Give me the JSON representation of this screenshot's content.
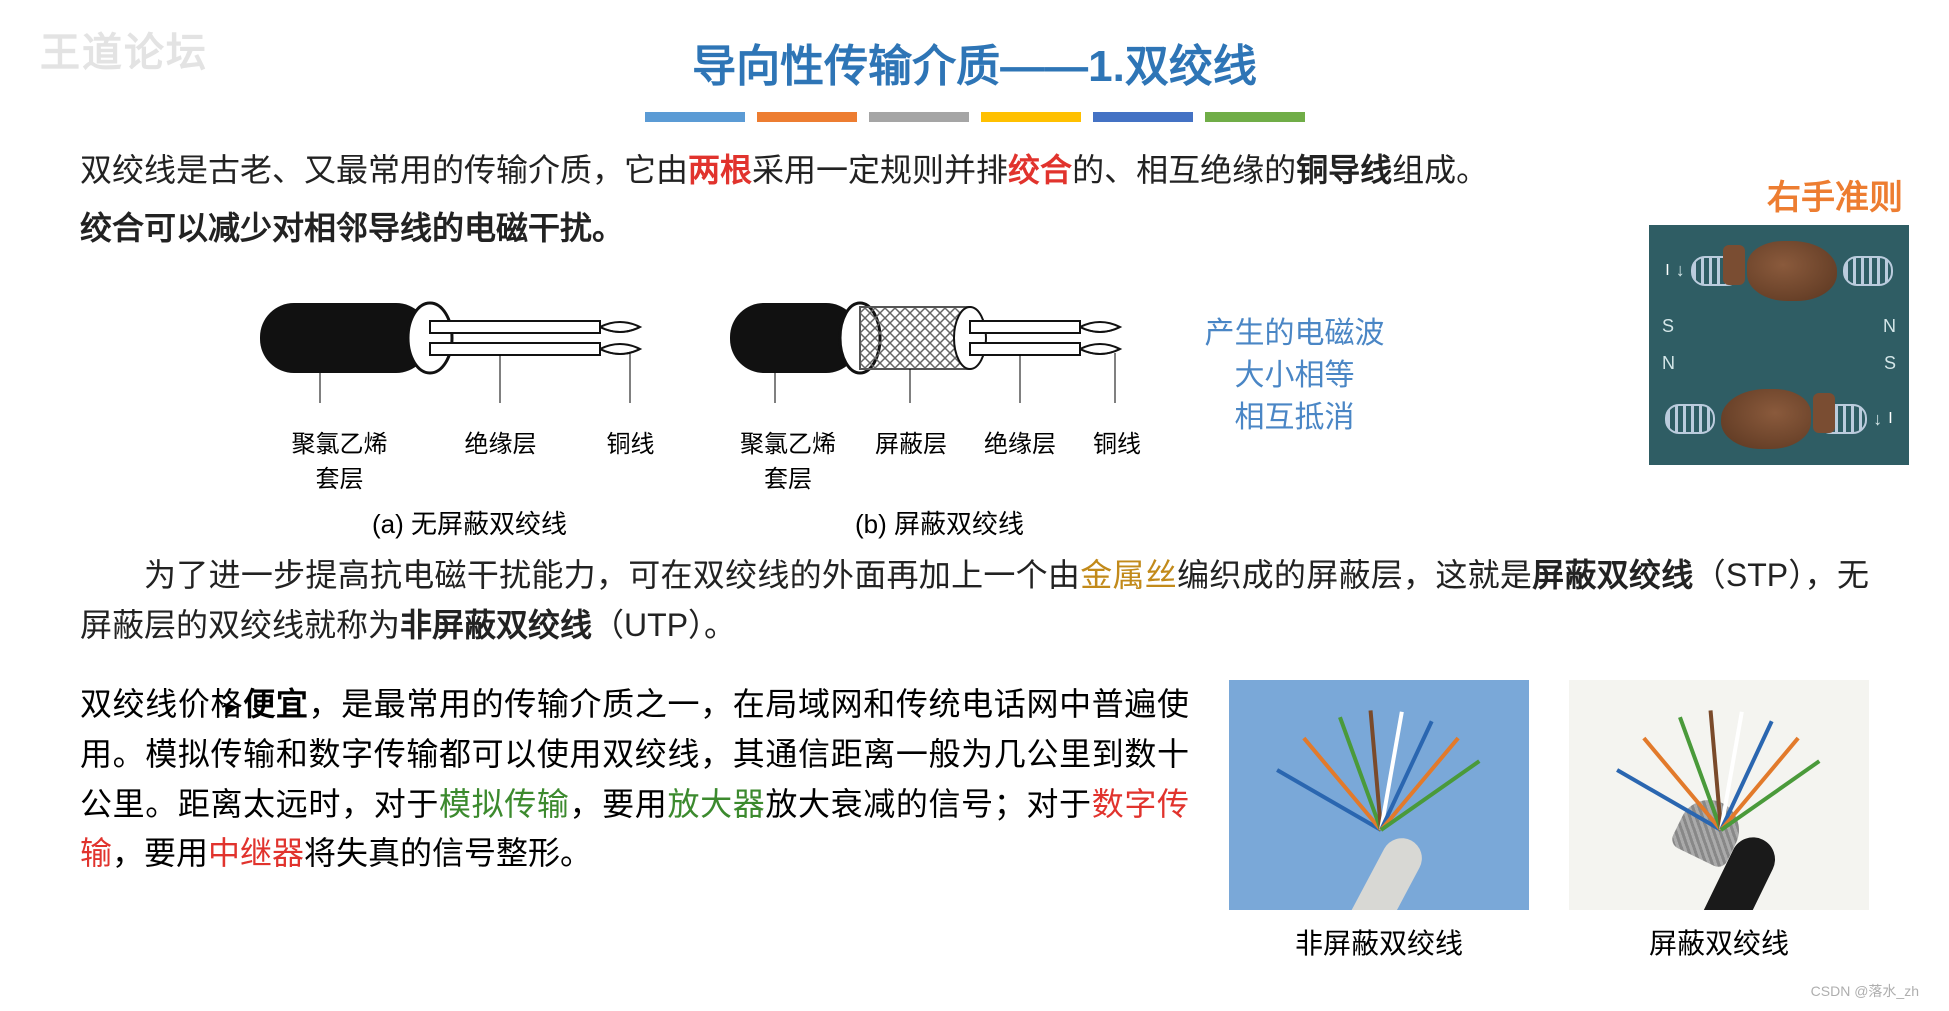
{
  "watermark": "王道论坛",
  "title": "导向性传输介质——1.双绞线",
  "colorbar": [
    "#5b9bd5",
    "#ed7d31",
    "#a5a5a5",
    "#ffc000",
    "#4472c4",
    "#70ad47"
  ],
  "intro": {
    "pre": "双绞线是古老、又最常用的传输介质，它由",
    "h1": "两根",
    "mid1": "采用一定规则并排",
    "h2": "绞合",
    "mid2": "的、相互绝缘的",
    "h3": "铜导线",
    "post": "组成。"
  },
  "intro2": "绞合可以减少对相邻导线的电磁干扰。",
  "diagA": {
    "labels": [
      "聚氯乙烯套层",
      "绝缘层",
      "铜线"
    ],
    "caption": "(a) 无屏蔽双绞线"
  },
  "diagB": {
    "labels": [
      "聚氯乙烯套层",
      "屏蔽层",
      "绝缘层",
      "铜线"
    ],
    "caption": "(b) 屏蔽双绞线"
  },
  "sidenote": [
    "产生的电磁波",
    "大小相等",
    "相互抵消"
  ],
  "right_rule_title": "右手准则",
  "hand_letters": {
    "left": "S",
    "right": "N",
    "left2": "N",
    "right2": "S",
    "i": "I"
  },
  "para2": {
    "p1": "为了进一步提高抗电磁干扰能力，可在双绞线的外面再加上一个由",
    "metal": "金属丝",
    "p2": "编织成的屏蔽层，这就是",
    "stp": "屏蔽双绞线",
    "p3": "（STP），无屏蔽层的双绞线就称为",
    "utp": "非屏蔽双绞线",
    "p4": "（UTP）。"
  },
  "para3": {
    "t1": "双绞线价格",
    "cheap": "便宜",
    "t2": "，是最常用的传输介质之一，在局域网和传统电话网中普遍使用。模拟传输和数字传输都可以使用双绞线，其通信距离一般为几公里到数十公里。距离太远时，对于",
    "analog": "模拟传输",
    "t3": "，要用",
    "amp": "放大器",
    "t4": "放大衰减的信号；对于",
    "digital": "数字传输",
    "t5": "，要用",
    "rep": "中继器",
    "t6": "将失真的信号整形。"
  },
  "photos": {
    "utp_caption": "非屏蔽双绞线",
    "stp_caption": "屏蔽双绞线",
    "utp_bg": "#7aa8d8",
    "stp_bg": "#f4f4f0",
    "wire_colors": [
      "#2a66b0",
      "#e27a2b",
      "#4a9a3a",
      "#7a4a2a",
      "#ffffff",
      "#2a66b0",
      "#e27a2b",
      "#4a9a3a"
    ]
  },
  "csdn": "CSDN @落水_zh"
}
